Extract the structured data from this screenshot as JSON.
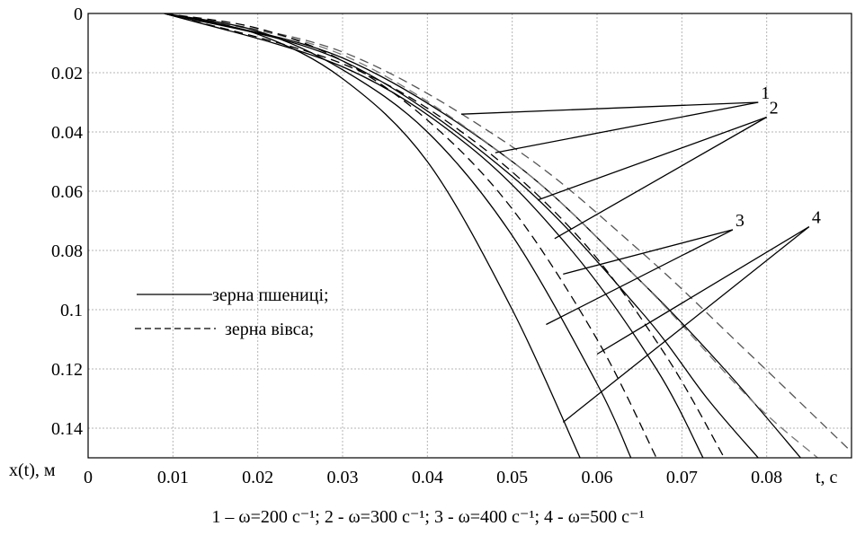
{
  "chart_data": {
    "type": "line",
    "x_axis": {
      "label": "t, c",
      "range": [
        0,
        0.09
      ],
      "ticks": [
        0,
        0.01,
        0.02,
        0.03,
        0.04,
        0.05,
        0.06,
        0.07,
        0.08
      ],
      "tick_labels": [
        "0",
        "0.01",
        "0.02",
        "0.03",
        "0.04",
        "0.05",
        "0.06",
        "0.07",
        "0.08"
      ]
    },
    "y_axis": {
      "label": "x(t), м",
      "range": [
        0,
        0.15
      ],
      "inverted": true,
      "ticks": [
        0,
        0.02,
        0.04,
        0.06,
        0.08,
        0.1,
        0.12,
        0.14
      ],
      "tick_labels": [
        "0",
        "0.02",
        "0.04",
        "0.06",
        "0.08",
        "0.1",
        "0.12",
        "0.14"
      ]
    },
    "grid": true,
    "legend": {
      "placement": "left-middle",
      "entries": [
        {
          "label": "зерна пшениці;",
          "style": "solid"
        },
        {
          "label": "зерна вівса;",
          "style": "dashed"
        }
      ]
    },
    "caption": "1 – ω=200 с⁻¹; 2 - ω=300 с⁻¹; 3 - ω=400 с⁻¹; 4 - ω=500 с⁻¹",
    "curve_groups": [
      {
        "label": "1",
        "omega": 200
      },
      {
        "label": "2",
        "omega": 300
      },
      {
        "label": "3",
        "omega": 400
      },
      {
        "label": "4",
        "omega": 500
      }
    ],
    "series": [
      {
        "group": "1",
        "style": "solid",
        "color": "#000000",
        "x": [
          0.009,
          0.03,
          0.05,
          0.065,
          0.075,
          0.084
        ],
        "y": [
          0.0,
          0.015,
          0.05,
          0.09,
          0.12,
          0.15
        ]
      },
      {
        "group": "1",
        "style": "dashed",
        "color": "#555555",
        "x": [
          0.009,
          0.03,
          0.05,
          0.065,
          0.078,
          0.09
        ],
        "y": [
          0.0,
          0.013,
          0.045,
          0.08,
          0.115,
          0.148
        ]
      },
      {
        "group": "2",
        "style": "solid",
        "color": "#000000",
        "x": [
          0.009,
          0.03,
          0.05,
          0.065,
          0.073,
          0.079
        ],
        "y": [
          0.0,
          0.016,
          0.055,
          0.1,
          0.13,
          0.15
        ]
      },
      {
        "group": "2",
        "style": "dashed",
        "color": "#777777",
        "x": [
          0.009,
          0.03,
          0.05,
          0.065,
          0.078,
          0.086
        ],
        "y": [
          0.0,
          0.014,
          0.05,
          0.09,
          0.13,
          0.15
        ]
      },
      {
        "group": "3",
        "style": "solid",
        "color": "#000000",
        "x": [
          0.009,
          0.03,
          0.045,
          0.057,
          0.067,
          0.0725
        ],
        "y": [
          0.0,
          0.018,
          0.045,
          0.08,
          0.12,
          0.15
        ]
      },
      {
        "group": "3",
        "style": "dashed",
        "color": "#000000",
        "x": [
          0.009,
          0.03,
          0.045,
          0.058,
          0.068,
          0.075
        ],
        "y": [
          0.0,
          0.017,
          0.042,
          0.076,
          0.115,
          0.15
        ]
      },
      {
        "group": "4",
        "style": "solid",
        "color": "#000000",
        "x": [
          0.009,
          0.02,
          0.03,
          0.04,
          0.05,
          0.058
        ],
        "y": [
          0.0,
          0.007,
          0.022,
          0.05,
          0.1,
          0.15
        ]
      },
      {
        "group": "4",
        "style": "solid",
        "color": "#000000",
        "x": [
          0.009,
          0.02,
          0.03,
          0.04,
          0.05,
          0.06,
          0.064
        ],
        "y": [
          0.0,
          0.006,
          0.019,
          0.04,
          0.075,
          0.125,
          0.15
        ]
      },
      {
        "group": "4",
        "style": "dashed",
        "color": "#000000",
        "x": [
          0.009,
          0.02,
          0.03,
          0.04,
          0.05,
          0.06,
          0.067
        ],
        "y": [
          0.0,
          0.005,
          0.016,
          0.036,
          0.066,
          0.11,
          0.15
        ]
      }
    ],
    "annotations": [
      {
        "label": "1",
        "tip": [
          0.079,
          0.03
        ],
        "targets": [
          [
            0.044,
            0.034
          ],
          [
            0.048,
            0.047
          ]
        ]
      },
      {
        "label": "2",
        "tip": [
          0.08,
          0.035
        ],
        "targets": [
          [
            0.053,
            0.063
          ],
          [
            0.055,
            0.076
          ]
        ]
      },
      {
        "label": "3",
        "tip": [
          0.076,
          0.073
        ],
        "targets": [
          [
            0.056,
            0.088
          ],
          [
            0.054,
            0.105
          ]
        ]
      },
      {
        "label": "4",
        "tip": [
          0.085,
          0.072
        ],
        "targets": [
          [
            0.06,
            0.115
          ],
          [
            0.056,
            0.138
          ]
        ]
      }
    ]
  }
}
